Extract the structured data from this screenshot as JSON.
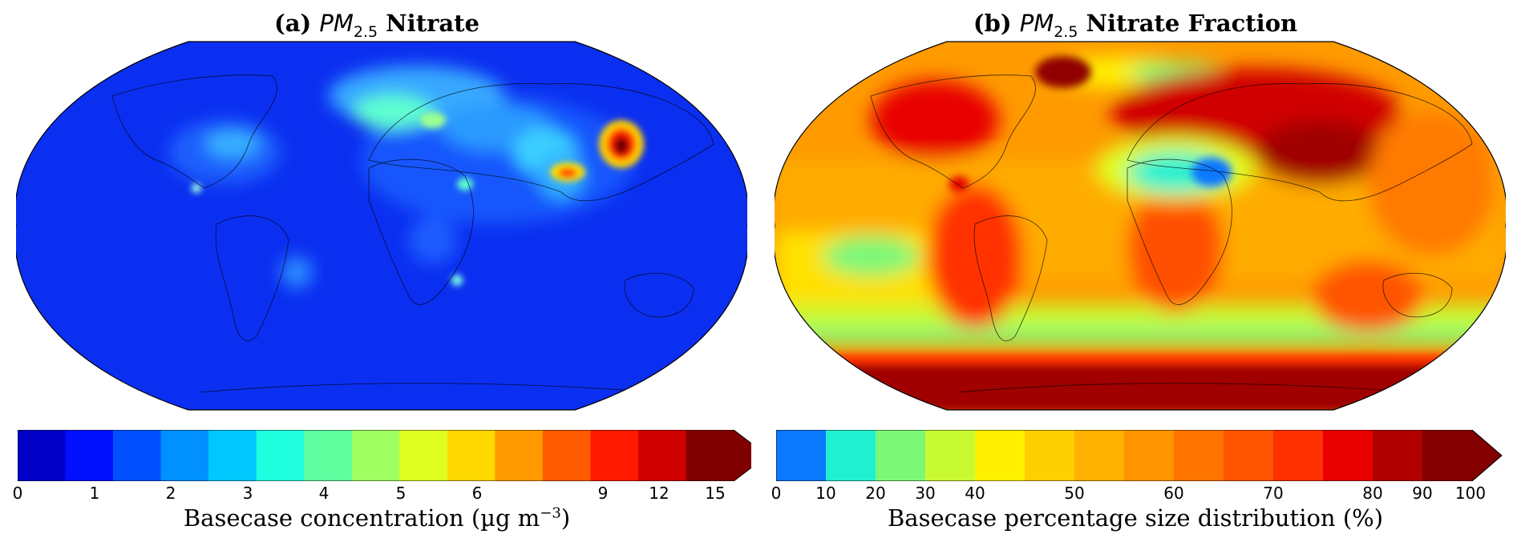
{
  "panels": [
    {
      "title_prefix": "(a)",
      "title_pm": "PM",
      "title_sub": "2.5",
      "title_suffix": "Nitrate",
      "colorbar": {
        "ticks": [
          "0",
          "1",
          "2",
          "3",
          "4",
          "5",
          "6",
          "9",
          "12",
          "15"
        ],
        "label": "Basecase concentration (µg m",
        "label_sup": "−3",
        "label_end": ")"
      }
    },
    {
      "title_prefix": "(b)",
      "title_pm": "PM",
      "title_sub": "2.5",
      "title_suffix": "Nitrate Fraction",
      "colorbar": {
        "ticks": [
          "0",
          "10",
          "20",
          "30",
          "40",
          "50",
          "60",
          "70",
          "80",
          "90",
          "100"
        ],
        "label": "Basecase percentage size distribution (%)"
      }
    }
  ],
  "colors": {
    "ocean_a": "#0b2ff0",
    "jet": [
      "#0000c8",
      "#0010ff",
      "#0050ff",
      "#0090ff",
      "#00c8ff",
      "#1fffe0",
      "#5fffa0",
      "#9fff60",
      "#dfff20",
      "#ffd800",
      "#ff9a00",
      "#ff5a00",
      "#ff1a00",
      "#d00000",
      "#800000"
    ],
    "fraction": [
      "#0a78ff",
      "#20f0d0",
      "#7cf878",
      "#c8fa32",
      "#fff000",
      "#ffd000",
      "#ffb000",
      "#ff9400",
      "#ff7400",
      "#ff5400",
      "#ff3000",
      "#e80000",
      "#b00000",
      "#820000"
    ]
  }
}
